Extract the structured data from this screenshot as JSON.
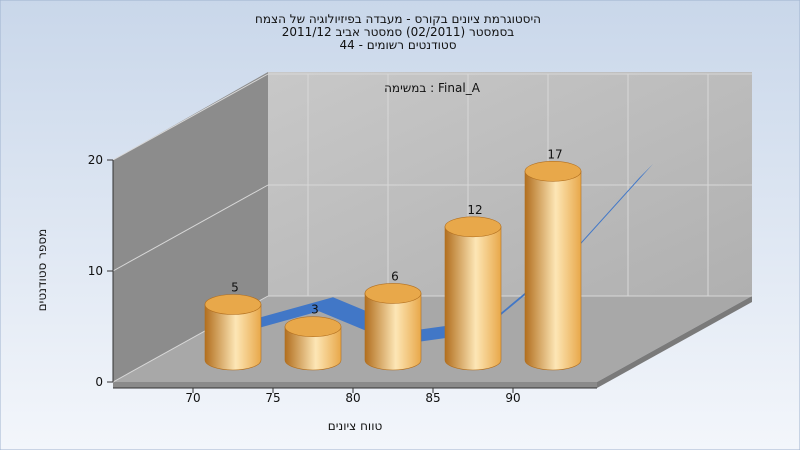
{
  "title": {
    "line1": "היסטוגרמת ציונים בקורס - מעבדה בפיזיולוגיה של הצמח",
    "line2": "בסמסטר  (02/2011)  סמסטר אביב 2011/12",
    "line3": "סטודנטים רשומים - 44"
  },
  "annotation": "במשימה : Final_A",
  "colors": {
    "background_top": "#c9d7ea",
    "background_bottom": "#f3f6fb",
    "bar": "#e8a84a",
    "bar_highlight": "#fde6b5",
    "bar_shadow": "#b26f1f",
    "curve": "#3b74c8",
    "wall_back": "#b9b9b9",
    "wall_left": "#8c8c8c",
    "floor": "#a8a8a8"
  },
  "chart_data": {
    "type": "bar",
    "categories": [
      "70",
      "75",
      "80",
      "85",
      "90"
    ],
    "x_ticks": [
      "70",
      "75",
      "80",
      "85",
      "90"
    ],
    "values": [
      5,
      3,
      6,
      12,
      17
    ],
    "xlabel": "טווח ציונים",
    "ylabel": "מספר סטודנטים",
    "ylim": [
      0,
      20
    ],
    "y_ticks": [
      "0",
      "10",
      "20"
    ],
    "grid": true,
    "curve_series": {
      "type": "area",
      "x": [
        70,
        75,
        80,
        85,
        90,
        95
      ],
      "y": [
        6,
        8,
        5,
        6,
        12,
        20
      ]
    }
  }
}
